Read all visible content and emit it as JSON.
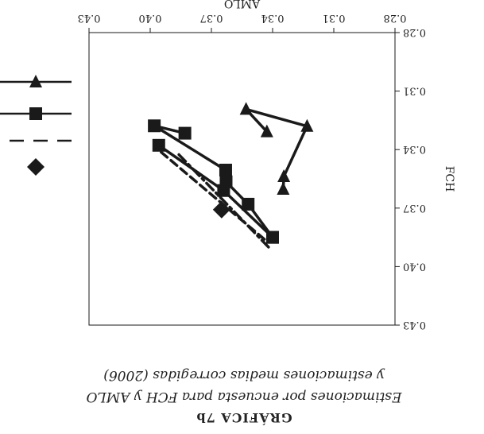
{
  "caption": {
    "title": "GRÁFICA 7b",
    "line1": "Estimaciones por encuesta para FCH y AMLO",
    "line2": "y estimaciones medias corregidas (2006)"
  },
  "colors": {
    "ink": "#1a1a1a"
  },
  "chart_data": {
    "type": "line",
    "title": "GRÁFICA 7b",
    "xlabel": "AMLO",
    "ylabel": "FCH",
    "xlim": [
      0.28,
      0.43
    ],
    "ylim": [
      0.28,
      0.43
    ],
    "x_ticks": [
      "0.28",
      "0.31",
      "0.34",
      "0.37",
      "0.40",
      "0.43"
    ],
    "y_ticks": [
      "0.28",
      "0.31",
      "0.34",
      "0.37",
      "0.40",
      "0.43"
    ],
    "series": [
      {
        "marker": "triangle-down",
        "style": "solid",
        "points": [
          [
            0.3348,
            0.3603
          ],
          [
            0.3345,
            0.3538
          ],
          [
            0.3231,
            0.328
          ],
          [
            0.353,
            0.3193
          ],
          [
            0.3428,
            0.3308
          ]
        ]
      },
      {
        "marker": "square",
        "style": "solid",
        "points": [
          [
            0.34,
            0.385
          ],
          [
            0.352,
            0.368
          ],
          [
            0.3628,
            0.3565
          ],
          [
            0.363,
            0.3505
          ],
          [
            0.398,
            0.3278
          ],
          [
            0.383,
            0.3316
          ]
        ]
      },
      {
        "marker": "square",
        "style": "solid-secondary",
        "points": [
          [
            0.34,
            0.385
          ],
          [
            0.364,
            0.361
          ],
          [
            0.3958,
            0.3378
          ]
        ]
      },
      {
        "marker": "none",
        "style": "dash",
        "points": [
          [
            0.344,
            0.386
          ],
          [
            0.395,
            0.341
          ]
        ]
      },
      {
        "marker": "none",
        "style": "dashdot",
        "points": [
          [
            0.342,
            0.39
          ],
          [
            0.386,
            0.3425
          ]
        ]
      },
      {
        "marker": "diamond",
        "style": "point",
        "points": [
          [
            0.365,
            0.3708
          ]
        ]
      }
    ],
    "legend": {
      "placement": "right",
      "entries": [
        {
          "marker": "diamond",
          "line": "none"
        },
        {
          "marker": "none",
          "line": "dash"
        },
        {
          "marker": "square",
          "line": "solid"
        },
        {
          "marker": "triangle-down",
          "line": "solid"
        }
      ]
    }
  }
}
